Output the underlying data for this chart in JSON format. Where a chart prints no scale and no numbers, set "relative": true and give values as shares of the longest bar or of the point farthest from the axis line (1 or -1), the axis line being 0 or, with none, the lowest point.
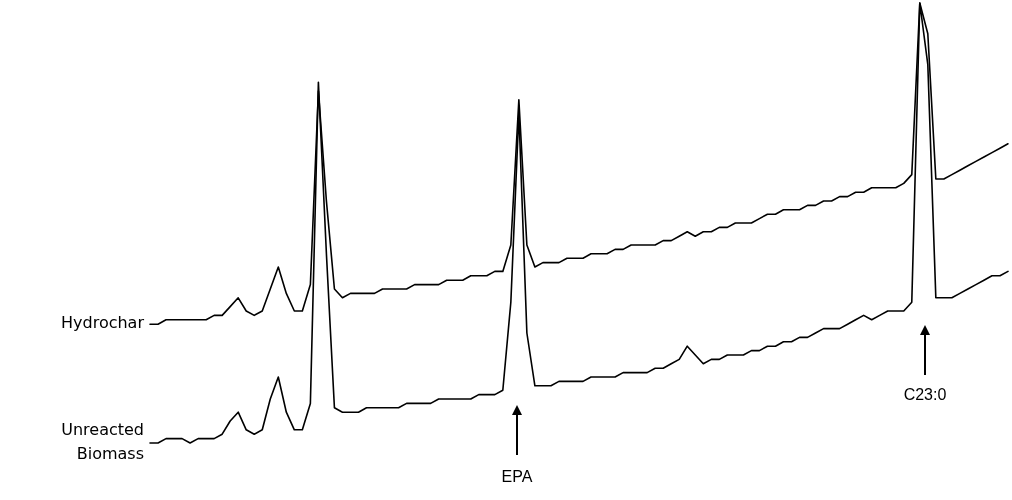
{
  "chart_data": {
    "type": "line",
    "relative": true,
    "marker": "none",
    "categories": [
      null,
      null,
      null,
      null,
      null,
      null,
      null,
      null,
      null,
      null,
      null,
      null,
      null,
      null,
      null,
      null,
      null,
      null,
      null,
      null,
      null,
      null,
      null,
      null,
      null,
      null,
      null,
      null,
      null,
      null,
      null,
      null,
      null,
      null,
      null,
      null,
      null,
      null,
      null,
      null,
      null,
      null,
      null,
      null,
      null,
      null,
      null,
      null,
      null,
      null,
      null,
      null,
      null,
      null,
      null,
      null,
      null,
      null,
      null,
      null,
      null,
      null,
      null,
      null,
      null,
      null,
      null,
      null,
      null,
      null,
      null,
      null,
      null,
      null,
      null,
      null,
      null,
      null,
      null,
      null,
      null,
      null,
      null,
      null,
      null,
      null,
      null,
      null,
      null,
      null,
      null,
      null,
      null,
      null,
      null,
      null,
      null,
      null,
      null,
      null,
      null,
      null,
      null,
      null,
      null,
      null,
      null,
      null
    ],
    "series": [
      {
        "name": "Hydrochar",
        "color": "#000000",
        "values": [
          0.27,
          0.27,
          0.28,
          0.28,
          0.28,
          0.28,
          0.28,
          0.28,
          0.29,
          0.29,
          0.31,
          0.33,
          0.3,
          0.29,
          0.3,
          0.35,
          0.4,
          0.34,
          0.3,
          0.3,
          0.36,
          0.8,
          0.55,
          0.35,
          0.33,
          0.34,
          0.34,
          0.34,
          0.34,
          0.35,
          0.35,
          0.35,
          0.35,
          0.36,
          0.36,
          0.36,
          0.36,
          0.37,
          0.37,
          0.37,
          0.38,
          0.38,
          0.38,
          0.39,
          0.39,
          0.45,
          0.78,
          0.45,
          0.4,
          0.41,
          0.41,
          0.41,
          0.42,
          0.42,
          0.42,
          0.43,
          0.43,
          0.43,
          0.44,
          0.44,
          0.45,
          0.45,
          0.45,
          0.45,
          0.46,
          0.46,
          0.47,
          0.48,
          0.47,
          0.48,
          0.48,
          0.49,
          0.49,
          0.5,
          0.5,
          0.5,
          0.51,
          0.52,
          0.52,
          0.53,
          0.53,
          0.53,
          0.54,
          0.54,
          0.55,
          0.55,
          0.56,
          0.56,
          0.57,
          0.57,
          0.58,
          0.58,
          0.58,
          0.58,
          0.59,
          0.61,
          1,
          0.93,
          0.6,
          0.6,
          0.61,
          0.62,
          0.63,
          0.64,
          0.65,
          0.66,
          0.67,
          0.68
        ]
      },
      {
        "name": "Unreacted Biomass",
        "color": "#000000",
        "values": [
          0,
          0,
          0.01,
          0.01,
          0.01,
          0,
          0.01,
          0.01,
          0.01,
          0.02,
          0.05,
          0.07,
          0.03,
          0.02,
          0.03,
          0.1,
          0.15,
          0.07,
          0.03,
          0.03,
          0.09,
          0.82,
          0.43,
          0.08,
          0.07,
          0.07,
          0.07,
          0.08,
          0.08,
          0.08,
          0.08,
          0.08,
          0.09,
          0.09,
          0.09,
          0.09,
          0.1,
          0.1,
          0.1,
          0.1,
          0.1,
          0.11,
          0.11,
          0.11,
          0.12,
          0.32,
          0.75,
          0.25,
          0.13,
          0.13,
          0.13,
          0.14,
          0.14,
          0.14,
          0.14,
          0.15,
          0.15,
          0.15,
          0.15,
          0.16,
          0.16,
          0.16,
          0.16,
          0.17,
          0.17,
          0.18,
          0.19,
          0.22,
          0.2,
          0.18,
          0.19,
          0.19,
          0.2,
          0.2,
          0.2,
          0.21,
          0.21,
          0.22,
          0.22,
          0.23,
          0.23,
          0.24,
          0.24,
          0.25,
          0.26,
          0.26,
          0.26,
          0.27,
          0.28,
          0.29,
          0.28,
          0.29,
          0.3,
          0.3,
          0.3,
          0.32,
          1,
          0.86,
          0.33,
          0.33,
          0.33,
          0.34,
          0.35,
          0.36,
          0.37,
          0.38,
          0.38,
          0.39
        ]
      }
    ],
    "annotations": [
      "EPA",
      "C23:0"
    ]
  }
}
